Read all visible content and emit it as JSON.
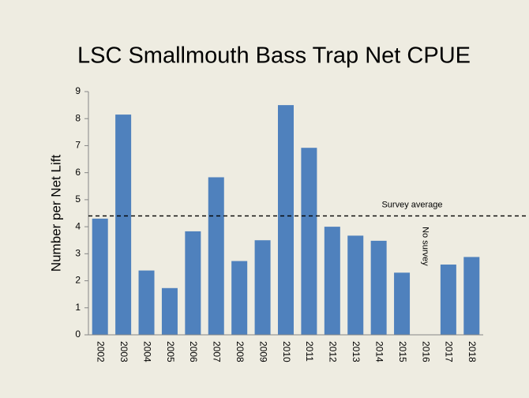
{
  "chart_data": {
    "type": "bar",
    "title": "LSC Smallmouth Bass Trap Net CPUE",
    "y_label": "Number per  Net Lift",
    "categories": [
      "2002",
      "2003",
      "2004",
      "2005",
      "2006",
      "2007",
      "2008",
      "2009",
      "2010",
      "2011",
      "2012",
      "2013",
      "2014",
      "2015",
      "2016",
      "2017",
      "2018"
    ],
    "values": [
      4.3,
      8.15,
      2.38,
      1.73,
      3.83,
      5.83,
      2.73,
      3.5,
      8.5,
      6.92,
      4.0,
      3.67,
      3.48,
      2.3,
      null,
      2.6,
      2.88
    ],
    "color": "#4f81bd",
    "ylim": [
      0,
      9
    ],
    "yticks": [
      0,
      1,
      2,
      3,
      4,
      5,
      6,
      7,
      8,
      9
    ],
    "grid": false,
    "reference_line": {
      "label": "Survey average",
      "value": 4.4
    },
    "annotations": [
      {
        "text": "No survey",
        "category": "2016"
      }
    ]
  }
}
